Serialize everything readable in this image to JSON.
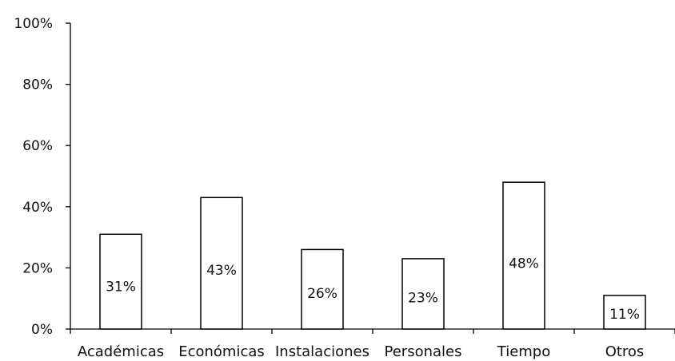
{
  "chart_data": {
    "type": "bar",
    "categories": [
      "Académicas",
      "Económicas",
      "Instalaciones",
      "Personales",
      "Tiempo",
      "Otros"
    ],
    "values": [
      31,
      43,
      26,
      23,
      48,
      11
    ],
    "data_labels": [
      "31%",
      "43%",
      "26%",
      "23%",
      "48%",
      "11%"
    ],
    "y_ticks": [
      0,
      20,
      40,
      60,
      80,
      100
    ],
    "y_tick_labels": [
      "0%",
      "20%",
      "40%",
      "60%",
      "80%",
      "100%"
    ],
    "ylim": [
      0,
      100
    ],
    "title": "",
    "xlabel": "",
    "ylabel": "",
    "grid": false,
    "bar_fill": "#ffffff",
    "bar_stroke": "#000000"
  }
}
